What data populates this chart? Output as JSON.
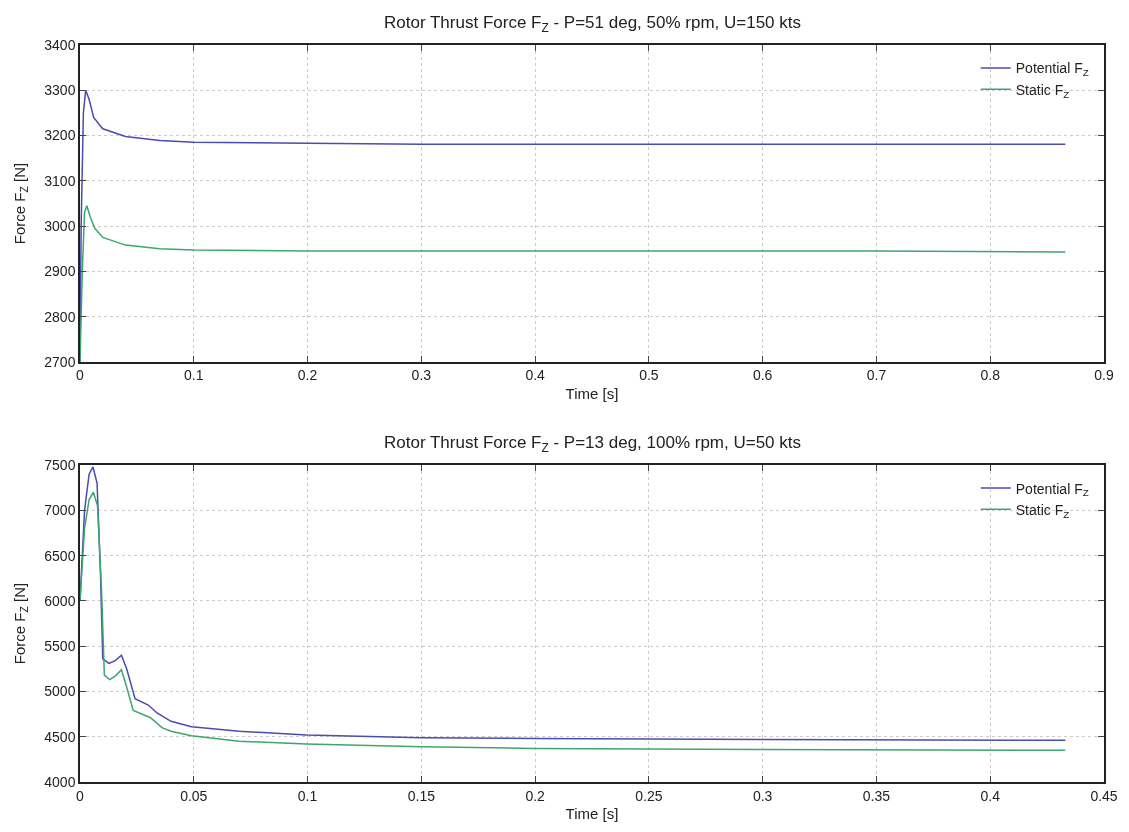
{
  "chart_data": [
    {
      "type": "line",
      "title": "Rotor Thrust Force F$_{Z}$ - P=51 deg, 50% rpm, U=150 kts",
      "xlabel": "Time [s]",
      "ylabel": "Force F$_{Z}$ [N]",
      "xlim": [
        0,
        0.9
      ],
      "xticks": [
        0,
        0.1,
        0.2,
        0.3,
        0.4,
        0.5,
        0.6,
        0.7,
        0.8,
        0.9
      ],
      "ylim": [
        2700,
        3400
      ],
      "yticks": [
        2700,
        2800,
        2900,
        3000,
        3100,
        3200,
        3300,
        3400
      ],
      "grid": true,
      "legend": "top right",
      "line_style": "solid",
      "series": [
        {
          "name": "Potential F$_{Z}$",
          "color": "#4b4bb0",
          "x": [
            0,
            0.001,
            0.003,
            0.005,
            0.008,
            0.012,
            0.02,
            0.04,
            0.07,
            0.1,
            0.2,
            0.3,
            0.5,
            0.866
          ],
          "values": [
            2700,
            3000,
            3250,
            3300,
            3280,
            3240,
            3215,
            3198,
            3189,
            3185,
            3183,
            3181,
            3181,
            3181
          ]
        },
        {
          "name": "Static F$_{Z}$",
          "color": "#3ca66e",
          "x": [
            0,
            0.002,
            0.004,
            0.006,
            0.009,
            0.013,
            0.02,
            0.04,
            0.07,
            0.1,
            0.2,
            0.5,
            0.7,
            0.866
          ],
          "values": [
            2700,
            2900,
            3030,
            3045,
            3020,
            2995,
            2975,
            2958,
            2950,
            2947,
            2945,
            2945,
            2945,
            2943
          ]
        }
      ]
    },
    {
      "type": "line",
      "title": "Rotor Thrust Force F$_{Z}$ - P=13 deg, 100% rpm, U=50 kts",
      "xlabel": "Time [s]",
      "ylabel": "Force F$_{Z}$ [N]",
      "xlim": [
        0,
        0.45
      ],
      "xticks": [
        0,
        0.05,
        0.1,
        0.15,
        0.2,
        0.25,
        0.3,
        0.35,
        0.4,
        0.45
      ],
      "ylim": [
        4000,
        7500
      ],
      "yticks": [
        4000,
        4500,
        5000,
        5500,
        6000,
        6500,
        7000,
        7500
      ],
      "grid": true,
      "legend": "top right",
      "line_style": "solid",
      "series": [
        {
          "name": "Potential F$_{Z}$",
          "color": "#4b4bb0",
          "x": [
            0,
            0.002,
            0.004,
            0.0057,
            0.0075,
            0.009,
            0.01,
            0.0127,
            0.0155,
            0.0182,
            0.0205,
            0.0242,
            0.03,
            0.034,
            0.04,
            0.049,
            0.07,
            0.0996,
            0.15,
            0.2,
            0.3,
            0.433
          ],
          "values": [
            6000,
            7000,
            7400,
            7480,
            7300,
            6300,
            5360,
            5310,
            5340,
            5400,
            5250,
            4920,
            4850,
            4760,
            4670,
            4610,
            4560,
            4520,
            4490,
            4480,
            4470,
            4460
          ]
        },
        {
          "name": "Static F$_{Z}$",
          "color": "#3ca66e",
          "x": [
            0,
            0.002,
            0.004,
            0.0059,
            0.0077,
            0.0095,
            0.0107,
            0.013,
            0.0155,
            0.0182,
            0.0205,
            0.0234,
            0.031,
            0.036,
            0.04,
            0.049,
            0.07,
            0.0995,
            0.15,
            0.2,
            0.3,
            0.433
          ],
          "values": [
            6000,
            6800,
            7120,
            7200,
            7050,
            6100,
            5180,
            5130,
            5170,
            5240,
            5050,
            4790,
            4710,
            4600,
            4560,
            4510,
            4450,
            4420,
            4390,
            4370,
            4360,
            4350
          ]
        }
      ]
    }
  ]
}
